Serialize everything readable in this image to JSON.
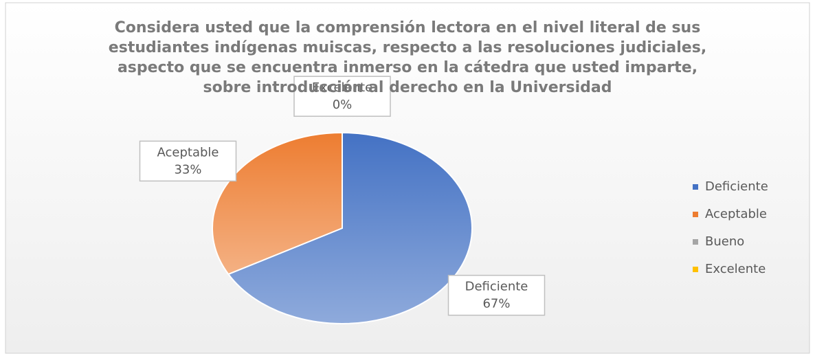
{
  "chart_data": {
    "type": "pie",
    "title": "Considera usted que la comprensión lectora en el nivel literal de sus estudiantes indígenas muiscas, respecto a las resoluciones judiciales, aspecto que se encuentra inmerso en la cátedra que usted imparte, sobre introducción al derecho en la Universidad",
    "categories": [
      "Deficiente",
      "Aceptable",
      "Bueno",
      "Excelente"
    ],
    "values": [
      67,
      33,
      0,
      0
    ],
    "value_labels": [
      "67%",
      "33%",
      null,
      "0%"
    ],
    "colors": [
      "#4472c4",
      "#ed7d31",
      "#a5a5a5",
      "#ffc000"
    ],
    "legend": "right"
  }
}
